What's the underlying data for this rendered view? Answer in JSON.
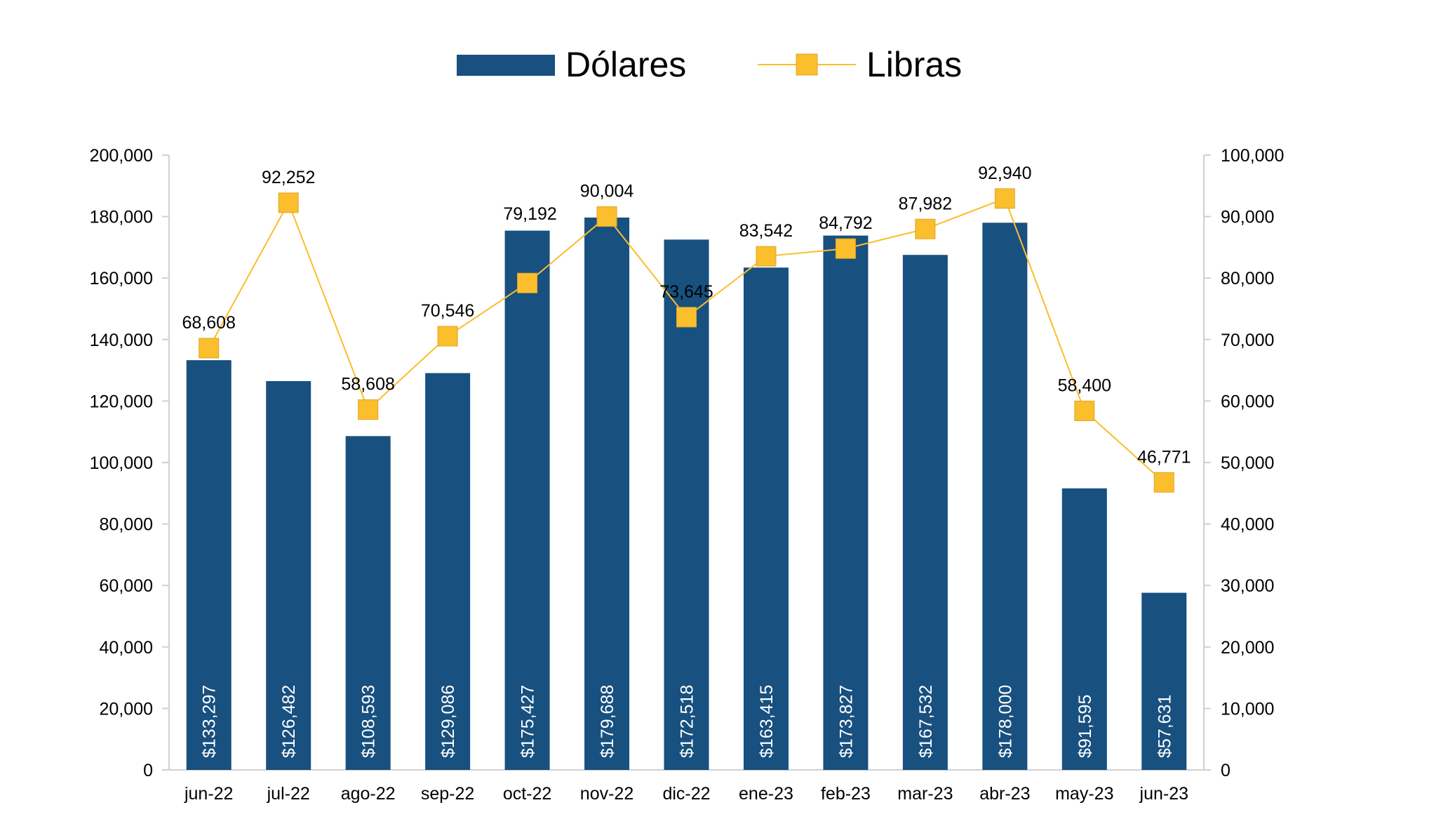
{
  "chart_data": {
    "type": "bar+line",
    "categories": [
      "jun-22",
      "jul-22",
      "ago-22",
      "sep-22",
      "oct-22",
      "nov-22",
      "dic-22",
      "ene-23",
      "feb-23",
      "mar-23",
      "abr-23",
      "may-23",
      "jun-23"
    ],
    "series": [
      {
        "name": "Dólares",
        "type": "bar",
        "axis": "left",
        "color": "#18507f",
        "values": [
          133297,
          126482,
          108593,
          129086,
          175427,
          179688,
          172518,
          163415,
          173827,
          167532,
          178000,
          91595,
          57631
        ],
        "labels": [
          "$133,297",
          "$126,482",
          "$108,593",
          "$129,086",
          "$175,427",
          "$179,688",
          "$172,518",
          "$163,415",
          "$173,827",
          "$167,532",
          "$178,000",
          "$91,595",
          "$57,631"
        ]
      },
      {
        "name": "Libras",
        "type": "line",
        "axis": "right",
        "color": "#fbbe2c",
        "values": [
          68608,
          92252,
          58608,
          70546,
          79192,
          90004,
          73645,
          83542,
          84792,
          87982,
          92940,
          58400,
          46771
        ],
        "labels": [
          "68,608",
          "92,252",
          "58,608",
          "70,546",
          "79,192",
          "90,004",
          "73,645",
          "83,542",
          "84,792",
          "87,982",
          "92,940",
          "58,400",
          "46,771"
        ]
      }
    ],
    "left_axis": {
      "ylim": [
        0,
        200000
      ],
      "ticks": [
        "0",
        "20,000",
        "40,000",
        "60,000",
        "80,000",
        "100,000",
        "120,000",
        "140,000",
        "160,000",
        "180,000",
        "200,000"
      ]
    },
    "right_axis": {
      "ylim": [
        0,
        100000
      ],
      "ticks": [
        "0",
        "10,000",
        "20,000",
        "30,000",
        "40,000",
        "50,000",
        "60,000",
        "70,000",
        "80,000",
        "90,000",
        "100,000"
      ]
    },
    "legend_position": "top-center",
    "grid": false
  }
}
